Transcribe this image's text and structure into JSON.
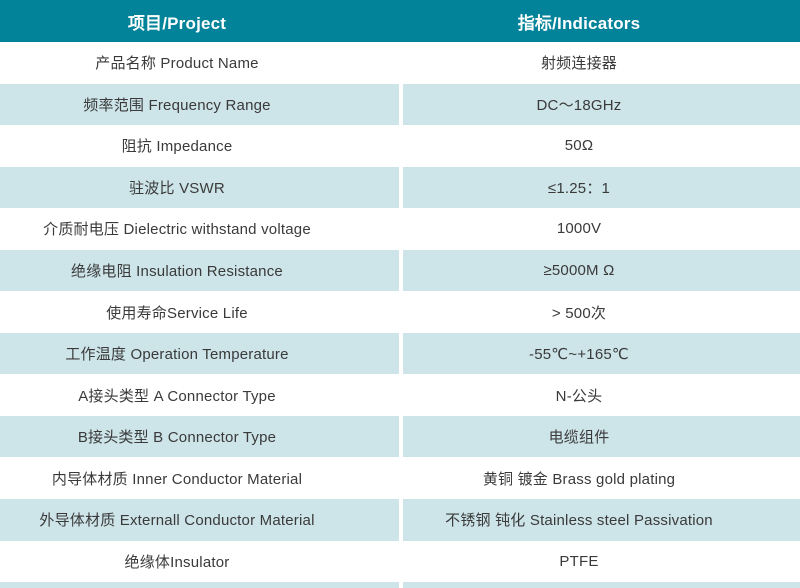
{
  "table": {
    "header": {
      "project_label": "项目/Project",
      "indicators_label": "指标/Indicators"
    },
    "rows": [
      {
        "project": "产品名称 Product Name",
        "indicator": "射频连接器"
      },
      {
        "project": "频率范围 Frequency Range",
        "indicator": "DC～18GHz"
      },
      {
        "project": "阻抗 Impedance",
        "indicator": "50Ω"
      },
      {
        "project": "驻波比 VSWR",
        "indicator": "≤1.25：1"
      },
      {
        "project": "介质耐电压 Dielectric withstand voltage",
        "indicator": "1000V"
      },
      {
        "project": "绝缘电阻 Insulation Resistance",
        "indicator": "≥5000M Ω"
      },
      {
        "project": "使用寿命Service Life",
        "indicator": "> 500次"
      },
      {
        "project": "工作温度 Operation Temperature",
        "indicator": "-55℃~+165℃"
      },
      {
        "project": "A接头类型 A Connector Type",
        "indicator": "N-公头"
      },
      {
        "project": "B接头类型 B Connector Type",
        "indicator": "电缆组件"
      },
      {
        "project": "内导体材质 Inner Conductor Material",
        "indicator": "黄铜 镀金 Brass gold plating"
      },
      {
        "project": "外导体材质 Externall Conductor Material",
        "indicator": "不锈钢 钝化 Stainless steel Passivation"
      },
      {
        "project": "绝缘体Insulator",
        "indicator": "PTFE"
      }
    ],
    "colors": {
      "header_bg": "#03839a",
      "header_text": "#ffffff",
      "row_alt_bg": "#cde4e9",
      "row_bg": "#ffffff",
      "text": "#3a3a3a"
    }
  }
}
